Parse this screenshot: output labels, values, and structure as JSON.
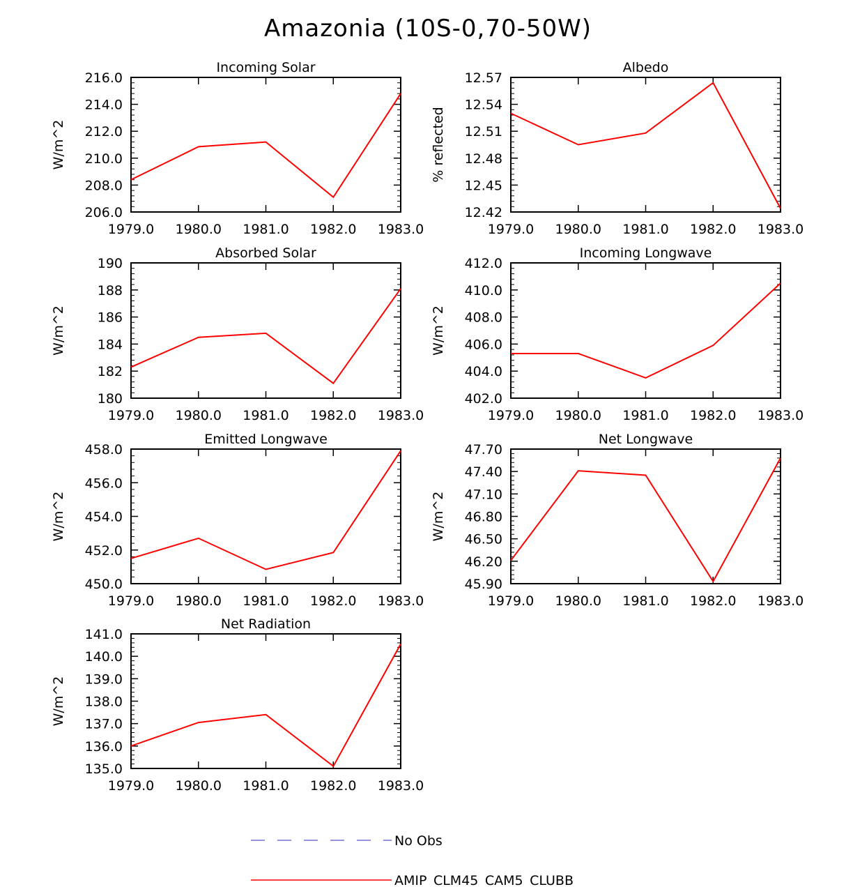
{
  "title": "Amazonia (10S-0,70-50W)",
  "chart_data": [
    {
      "type": "line",
      "title": "Incoming Solar",
      "ylabel": "W/m^2",
      "x": [
        1979,
        1980,
        1981,
        1982,
        1983
      ],
      "xticks": [
        "1979.0",
        "1980.0",
        "1981.0",
        "1982.0",
        "1983.0"
      ],
      "ylim": [
        206.0,
        216.0
      ],
      "yticks": [
        "206.0",
        "208.0",
        "210.0",
        "212.0",
        "214.0",
        "216.0"
      ],
      "series": [
        {
          "name": "AMIP_CLM45_CAM5_CLUBB",
          "values": [
            208.4,
            210.85,
            211.2,
            207.1,
            214.8
          ]
        }
      ]
    },
    {
      "type": "line",
      "title": "Albedo",
      "ylabel": "% reflected",
      "x": [
        1979,
        1980,
        1981,
        1982,
        1983
      ],
      "xticks": [
        "1979.0",
        "1980.0",
        "1981.0",
        "1982.0",
        "1983.0"
      ],
      "ylim": [
        12.42,
        12.57
      ],
      "yticks": [
        "12.42",
        "12.45",
        "12.48",
        "12.51",
        "12.54",
        "12.57"
      ],
      "series": [
        {
          "name": "AMIP_CLM45_CAM5_CLUBB",
          "values": [
            12.53,
            12.495,
            12.508,
            12.564,
            12.424
          ]
        }
      ]
    },
    {
      "type": "line",
      "title": "Absorbed Solar",
      "ylabel": "W/m^2",
      "x": [
        1979,
        1980,
        1981,
        1982,
        1983
      ],
      "xticks": [
        "1979.0",
        "1980.0",
        "1981.0",
        "1982.0",
        "1983.0"
      ],
      "ylim": [
        180,
        190
      ],
      "yticks": [
        "180",
        "182",
        "184",
        "186",
        "188",
        "190"
      ],
      "series": [
        {
          "name": "AMIP_CLM45_CAM5_CLUBB",
          "values": [
            182.3,
            184.5,
            184.8,
            181.1,
            188.1
          ]
        }
      ]
    },
    {
      "type": "line",
      "title": "Incoming Longwave",
      "ylabel": "W/m^2",
      "x": [
        1979,
        1980,
        1981,
        1982,
        1983
      ],
      "xticks": [
        "1979.0",
        "1980.0",
        "1981.0",
        "1982.0",
        "1983.0"
      ],
      "ylim": [
        402.0,
        412.0
      ],
      "yticks": [
        "402.0",
        "404.0",
        "406.0",
        "408.0",
        "410.0",
        "412.0"
      ],
      "series": [
        {
          "name": "AMIP_CLM45_CAM5_CLUBB",
          "values": [
            405.3,
            405.3,
            403.5,
            405.9,
            410.5
          ]
        }
      ]
    },
    {
      "type": "line",
      "title": "Emitted Longwave",
      "ylabel": "W/m^2",
      "x": [
        1979,
        1980,
        1981,
        1982,
        1983
      ],
      "xticks": [
        "1979.0",
        "1980.0",
        "1981.0",
        "1982.0",
        "1983.0"
      ],
      "ylim": [
        450.0,
        458.0
      ],
      "yticks": [
        "450.0",
        "452.0",
        "454.0",
        "456.0",
        "458.0"
      ],
      "series": [
        {
          "name": "AMIP_CLM45_CAM5_CLUBB",
          "values": [
            451.5,
            452.7,
            450.85,
            451.85,
            457.9
          ]
        }
      ]
    },
    {
      "type": "line",
      "title": "Net Longwave",
      "ylabel": "W/m^2",
      "x": [
        1979,
        1980,
        1981,
        1982,
        1983
      ],
      "xticks": [
        "1979.0",
        "1980.0",
        "1981.0",
        "1982.0",
        "1983.0"
      ],
      "ylim": [
        45.9,
        47.7
      ],
      "yticks": [
        "45.90",
        "46.20",
        "46.50",
        "46.80",
        "47.10",
        "47.40",
        "47.70"
      ],
      "series": [
        {
          "name": "AMIP_CLM45_CAM5_CLUBB",
          "values": [
            46.21,
            47.41,
            47.35,
            45.93,
            47.58
          ]
        }
      ]
    },
    {
      "type": "line",
      "title": "Net Radiation",
      "ylabel": "W/m^2",
      "x": [
        1979,
        1980,
        1981,
        1982,
        1983
      ],
      "xticks": [
        "1979.0",
        "1980.0",
        "1981.0",
        "1982.0",
        "1983.0"
      ],
      "ylim": [
        135.0,
        141.0
      ],
      "yticks": [
        "135.0",
        "136.0",
        "137.0",
        "138.0",
        "139.0",
        "140.0",
        "141.0"
      ],
      "series": [
        {
          "name": "AMIP_CLM45_CAM5_CLUBB",
          "values": [
            136.0,
            137.05,
            137.4,
            135.1,
            140.55
          ]
        }
      ]
    }
  ],
  "legend": [
    {
      "label": "No Obs",
      "color": "#7070d8",
      "style": "dashed"
    },
    {
      "label": "AMIP_CLM45_CAM5_CLUBB",
      "color": "#ff0000",
      "style": "solid"
    }
  ]
}
